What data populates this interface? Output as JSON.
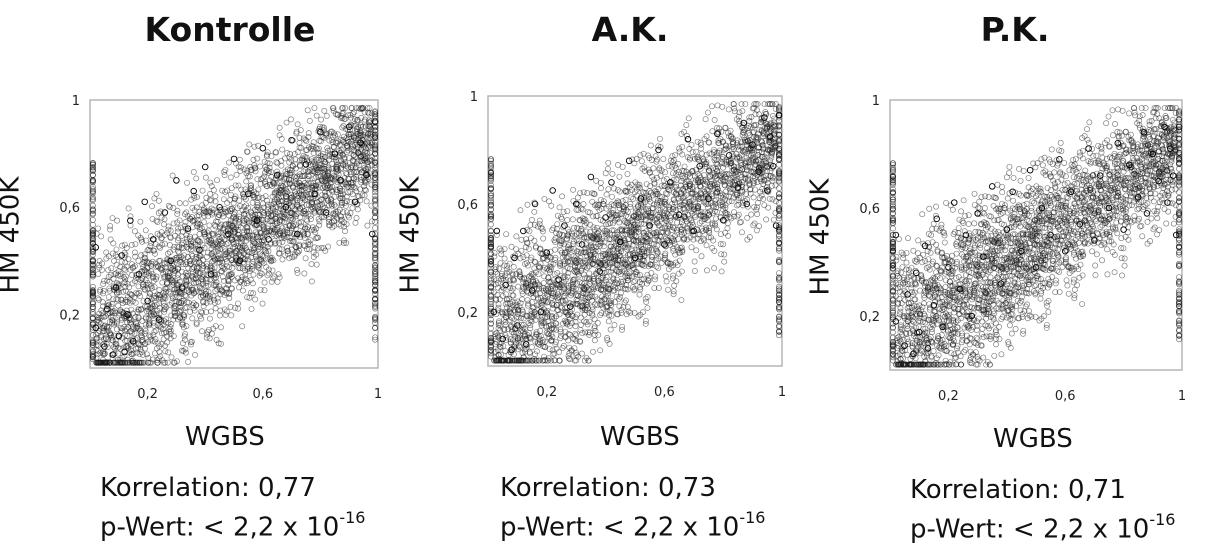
{
  "chart_data": [
    {
      "type": "scatter",
      "title": "Kontrolle",
      "xlabel": "WGBS",
      "ylabel": "HM 450K",
      "xlim": [
        0,
        1
      ],
      "ylim": [
        0,
        1
      ],
      "xticks": [
        "0,2",
        "0,6",
        "1"
      ],
      "yticks": [
        "0,2",
        "0,6",
        "1"
      ],
      "correlation_label": "Korrelation: 0,77",
      "pvalue_label": "p-Wert: < 2,2 x 10",
      "pvalue_exponent": "-16",
      "points": [
        [
          0.02,
          0.15
        ],
        [
          0.02,
          0.45
        ],
        [
          0.05,
          0.08
        ],
        [
          0.06,
          0.22
        ],
        [
          0.08,
          0.05
        ],
        [
          0.09,
          0.3
        ],
        [
          0.1,
          0.12
        ],
        [
          0.11,
          0.42
        ],
        [
          0.12,
          0.06
        ],
        [
          0.13,
          0.2
        ],
        [
          0.14,
          0.55
        ],
        [
          0.15,
          0.1
        ],
        [
          0.17,
          0.35
        ],
        [
          0.19,
          0.62
        ],
        [
          0.2,
          0.25
        ],
        [
          0.22,
          0.48
        ],
        [
          0.24,
          0.18
        ],
        [
          0.26,
          0.58
        ],
        [
          0.28,
          0.4
        ],
        [
          0.3,
          0.7
        ],
        [
          0.32,
          0.3
        ],
        [
          0.34,
          0.52
        ],
        [
          0.36,
          0.66
        ],
        [
          0.38,
          0.44
        ],
        [
          0.4,
          0.75
        ],
        [
          0.42,
          0.35
        ],
        [
          0.45,
          0.6
        ],
        [
          0.48,
          0.5
        ],
        [
          0.5,
          0.78
        ],
        [
          0.52,
          0.4
        ],
        [
          0.55,
          0.65
        ],
        [
          0.58,
          0.55
        ],
        [
          0.6,
          0.82
        ],
        [
          0.62,
          0.48
        ],
        [
          0.65,
          0.72
        ],
        [
          0.68,
          0.6
        ],
        [
          0.7,
          0.85
        ],
        [
          0.72,
          0.5
        ],
        [
          0.75,
          0.76
        ],
        [
          0.78,
          0.65
        ],
        [
          0.8,
          0.88
        ],
        [
          0.82,
          0.58
        ],
        [
          0.85,
          0.8
        ],
        [
          0.87,
          0.7
        ],
        [
          0.9,
          0.9
        ],
        [
          0.92,
          0.62
        ],
        [
          0.94,
          0.84
        ],
        [
          0.96,
          0.72
        ],
        [
          0.98,
          0.5
        ],
        [
          0.99,
          0.92
        ]
      ]
    },
    {
      "type": "scatter",
      "title": "A.K.",
      "xlabel": "WGBS",
      "ylabel": "HM 450K",
      "xlim": [
        0,
        1
      ],
      "ylim": [
        0,
        1
      ],
      "xticks": [
        "0,2",
        "0,6",
        "1"
      ],
      "yticks": [
        "0,2",
        "0,6",
        "1"
      ],
      "correlation_label": "Korrelation: 0,73",
      "pvalue_label": "p-Wert: < 2,2 x 10",
      "pvalue_exponent": "-16",
      "points": [
        [
          0.02,
          0.2
        ],
        [
          0.03,
          0.5
        ],
        [
          0.05,
          0.1
        ],
        [
          0.06,
          0.3
        ],
        [
          0.08,
          0.06
        ],
        [
          0.09,
          0.4
        ],
        [
          0.1,
          0.15
        ],
        [
          0.12,
          0.5
        ],
        [
          0.13,
          0.08
        ],
        [
          0.15,
          0.28
        ],
        [
          0.16,
          0.6
        ],
        [
          0.18,
          0.2
        ],
        [
          0.2,
          0.42
        ],
        [
          0.22,
          0.65
        ],
        [
          0.24,
          0.32
        ],
        [
          0.26,
          0.52
        ],
        [
          0.28,
          0.22
        ],
        [
          0.3,
          0.6
        ],
        [
          0.32,
          0.45
        ],
        [
          0.35,
          0.7
        ],
        [
          0.38,
          0.35
        ],
        [
          0.4,
          0.55
        ],
        [
          0.42,
          0.68
        ],
        [
          0.45,
          0.46
        ],
        [
          0.48,
          0.76
        ],
        [
          0.5,
          0.4
        ],
        [
          0.52,
          0.62
        ],
        [
          0.55,
          0.52
        ],
        [
          0.58,
          0.8
        ],
        [
          0.6,
          0.45
        ],
        [
          0.62,
          0.68
        ],
        [
          0.65,
          0.56
        ],
        [
          0.68,
          0.84
        ],
        [
          0.7,
          0.5
        ],
        [
          0.72,
          0.74
        ],
        [
          0.75,
          0.62
        ],
        [
          0.78,
          0.86
        ],
        [
          0.8,
          0.54
        ],
        [
          0.82,
          0.78
        ],
        [
          0.85,
          0.66
        ],
        [
          0.87,
          0.9
        ],
        [
          0.88,
          0.6
        ],
        [
          0.9,
          0.82
        ],
        [
          0.92,
          0.72
        ],
        [
          0.94,
          0.92
        ],
        [
          0.95,
          0.65
        ],
        [
          0.96,
          0.85
        ],
        [
          0.97,
          0.74
        ],
        [
          0.98,
          0.52
        ],
        [
          0.99,
          0.93
        ]
      ]
    },
    {
      "type": "scatter",
      "title": "P.K.",
      "xlabel": "WGBS",
      "ylabel": "HM 450K",
      "xlim": [
        0,
        1
      ],
      "ylim": [
        0,
        1
      ],
      "xticks": [
        "0,2",
        "0,6",
        "1"
      ],
      "yticks": [
        "0,2",
        "0,6",
        "1"
      ],
      "correlation_label": "Korrelation: 0,71",
      "pvalue_label": "p-Wert: < 2,2 x 10",
      "pvalue_exponent": "-16",
      "points": [
        [
          0.02,
          0.18
        ],
        [
          0.02,
          0.5
        ],
        [
          0.05,
          0.09
        ],
        [
          0.06,
          0.28
        ],
        [
          0.08,
          0.06
        ],
        [
          0.09,
          0.36
        ],
        [
          0.1,
          0.14
        ],
        [
          0.12,
          0.46
        ],
        [
          0.13,
          0.08
        ],
        [
          0.15,
          0.24
        ],
        [
          0.16,
          0.56
        ],
        [
          0.18,
          0.16
        ],
        [
          0.2,
          0.38
        ],
        [
          0.22,
          0.62
        ],
        [
          0.24,
          0.3
        ],
        [
          0.26,
          0.5
        ],
        [
          0.28,
          0.2
        ],
        [
          0.3,
          0.58
        ],
        [
          0.32,
          0.42
        ],
        [
          0.35,
          0.68
        ],
        [
          0.38,
          0.32
        ],
        [
          0.4,
          0.52
        ],
        [
          0.42,
          0.66
        ],
        [
          0.45,
          0.44
        ],
        [
          0.48,
          0.74
        ],
        [
          0.5,
          0.38
        ],
        [
          0.52,
          0.6
        ],
        [
          0.55,
          0.5
        ],
        [
          0.58,
          0.78
        ],
        [
          0.6,
          0.44
        ],
        [
          0.62,
          0.66
        ],
        [
          0.65,
          0.54
        ],
        [
          0.68,
          0.82
        ],
        [
          0.7,
          0.48
        ],
        [
          0.72,
          0.72
        ],
        [
          0.75,
          0.6
        ],
        [
          0.78,
          0.84
        ],
        [
          0.8,
          0.52
        ],
        [
          0.82,
          0.76
        ],
        [
          0.85,
          0.64
        ],
        [
          0.87,
          0.88
        ],
        [
          0.88,
          0.58
        ],
        [
          0.9,
          0.8
        ],
        [
          0.92,
          0.7
        ],
        [
          0.94,
          0.9
        ],
        [
          0.95,
          0.62
        ],
        [
          0.96,
          0.82
        ],
        [
          0.97,
          0.72
        ],
        [
          0.98,
          0.5
        ],
        [
          0.99,
          0.9
        ]
      ]
    }
  ]
}
